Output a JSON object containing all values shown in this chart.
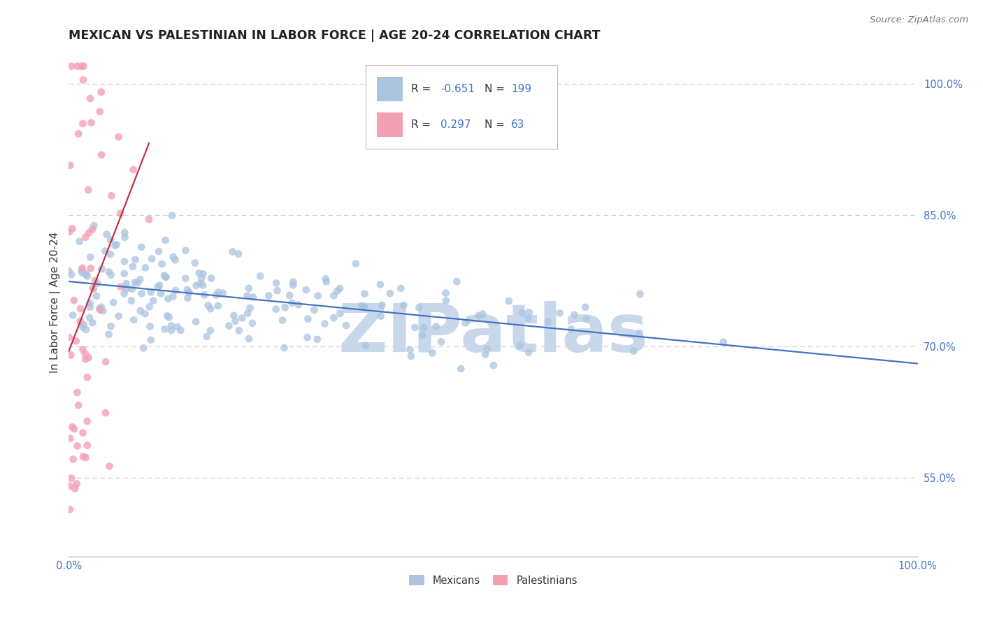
{
  "title": "MEXICAN VS PALESTINIAN IN LABOR FORCE | AGE 20-24 CORRELATION CHART",
  "source": "Source: ZipAtlas.com",
  "ylabel": "In Labor Force | Age 20-24",
  "xlim": [
    0.0,
    1.0
  ],
  "ylim": [
    0.46,
    1.04
  ],
  "yticks": [
    0.55,
    0.7,
    0.85,
    1.0
  ],
  "ytick_labels": [
    "55.0%",
    "70.0%",
    "85.0%",
    "100.0%"
  ],
  "xtick_labels": [
    "0.0%",
    "100.0%"
  ],
  "blue_R": -0.651,
  "blue_N": 199,
  "pink_R": 0.297,
  "pink_N": 63,
  "blue_color": "#aac4e0",
  "pink_color": "#f4a0b4",
  "blue_line_color": "#4472c4",
  "pink_line_color": "#c0304a",
  "watermark": "ZIPatlas",
  "watermark_color": "#c8d8ea",
  "background_color": "#ffffff",
  "grid_color": "#c8d4e0",
  "title_fontsize": 12.5,
  "axis_fontsize": 11,
  "tick_fontsize": 10.5,
  "legend_value_color": "#4472c4",
  "legend_label_color": "#333333",
  "source_color": "#777777",
  "yaxis_label_color": "#333333"
}
